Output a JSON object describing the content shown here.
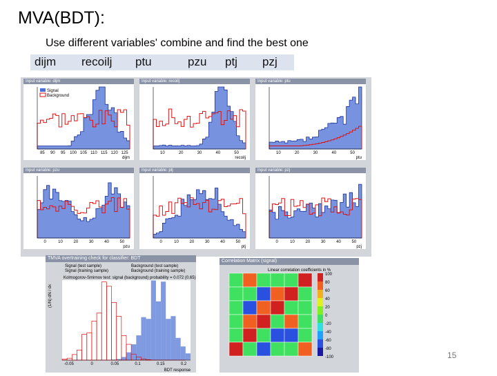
{
  "slide": {
    "title": "MVA(BDT):",
    "subtitle": "Use different variables' combine and find the best one",
    "variables": [
      "dijm",
      "recoilj",
      "ptu",
      "pzu",
      "ptj",
      "pzj"
    ],
    "page_number": "15"
  },
  "plots": [
    {
      "header": "Input variable: dijm",
      "xlabel": "dijm",
      "ticks": [
        "85",
        "90",
        "95",
        "100",
        "105",
        "110",
        "115",
        "120",
        "125"
      ]
    },
    {
      "header": "Input variable: recoilj",
      "xlabel": "recoilj",
      "ticks": [
        "10",
        "20",
        "30",
        "40",
        "50"
      ]
    },
    {
      "header": "Input variable: ptu",
      "xlabel": "ptu",
      "ticks": [
        "10",
        "20",
        "30",
        "40",
        "50"
      ]
    },
    {
      "header": "Input variable: pzu",
      "xlabel": "pzu",
      "ticks": [
        "0",
        "10",
        "20",
        "30",
        "40",
        "50"
      ]
    },
    {
      "header": "Input variable: ptj",
      "xlabel": "ptj",
      "ticks": [
        "0",
        "10",
        "20",
        "30",
        "40",
        "50"
      ]
    },
    {
      "header": "Input variable: pzj",
      "xlabel": "pzj",
      "ticks": [
        "0",
        "10",
        "20",
        "30",
        "40",
        "50"
      ]
    }
  ],
  "legend": {
    "signal": "Signal",
    "background": "Background"
  },
  "overtraining": {
    "header": "TMVA overtraining check for classifier: BDT",
    "legend": [
      "Signal (test sample)",
      "Background (test sample)",
      "Signal (training sample)",
      "Background (training sample)"
    ],
    "ks": "Kolmogorov-Smirnov test: signal (background) probability = 0.072 (0.65)",
    "xlabel": "BDT response",
    "ylabel": "(1/N) dN / dx",
    "ticks": [
      "-0.05",
      "0",
      "0.05",
      "0.1",
      "0.15",
      "0.2"
    ]
  },
  "correlation": {
    "header": "Correlation Matrix (signal)",
    "subheader": "Linear correlation coefficients in %",
    "scale": [
      "100",
      "80",
      "60",
      "40",
      "20",
      "0",
      "-20",
      "-40",
      "-60",
      "-80",
      "-100"
    ]
  },
  "colors": {
    "signal_fill": "#4a6fd6",
    "background_line": "#e01010",
    "header": "#8a93a6"
  }
}
